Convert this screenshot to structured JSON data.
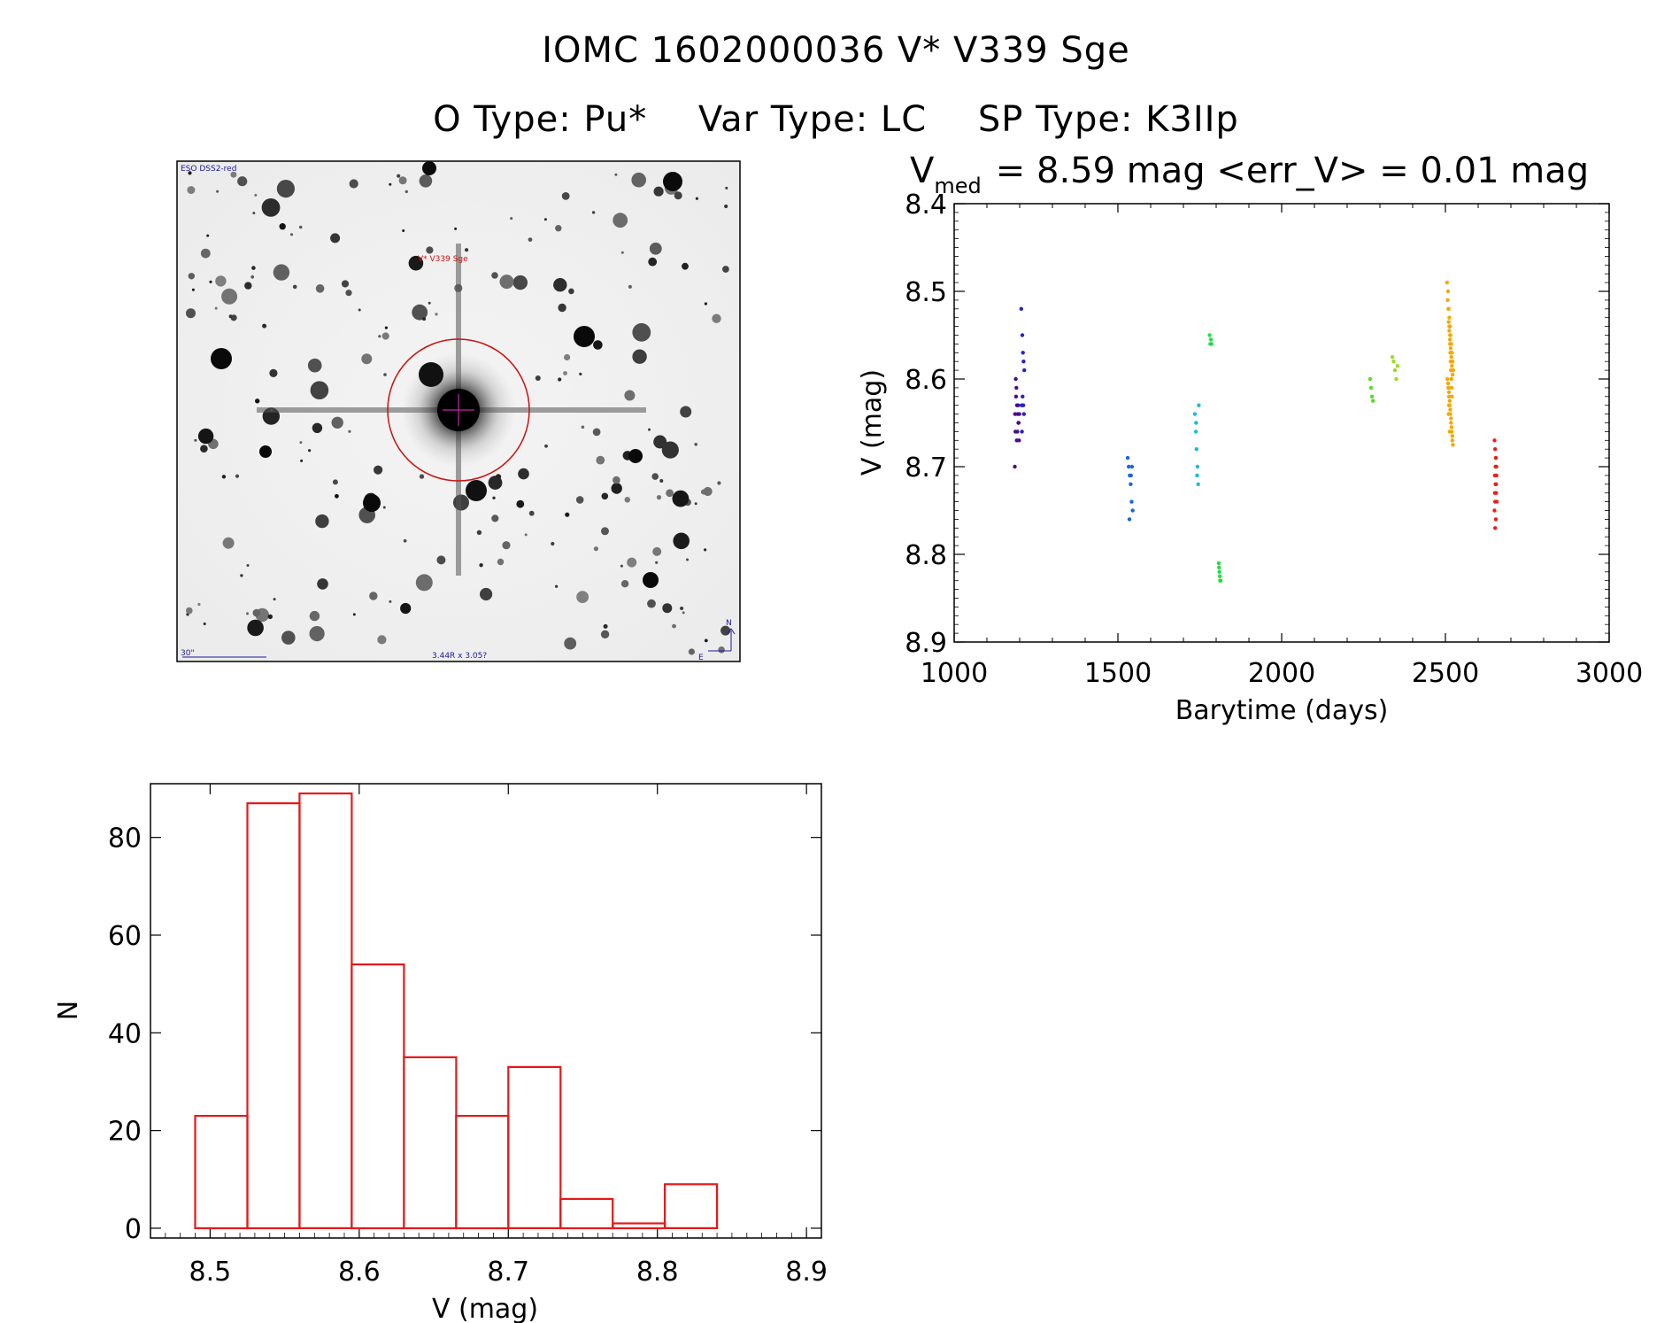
{
  "header": {
    "line1": "IOMC 1602000036    V* V339 Sge",
    "otype": "O Type: Pu*",
    "vartype": "Var Type: LC",
    "sptype": "SP Type: K3IIp"
  },
  "finder": {
    "survey_label": "ESO DSS2-red",
    "target_label": "V* V339 Sge",
    "scale_label": "30\"",
    "fov_label": "3.44R x 3.05?",
    "north_label": "N",
    "east_label": "E"
  },
  "colors": {
    "histogram": "#e81818",
    "target_marker": "#cc1111",
    "stamp_text": "#1a1a9a"
  },
  "chart_data": [
    {
      "type": "scatter",
      "title_main": "V",
      "title_sub": "med",
      "title_rest": "= 8.59 mag <err_V> = 0.01 mag",
      "xlabel": "Barytime (days)",
      "ylabel": "V (mag)",
      "xlim": [
        1000,
        3000
      ],
      "ylim": [
        8.9,
        8.4
      ],
      "y_inverted": true,
      "xticks": [
        1000,
        1500,
        2000,
        2500,
        3000
      ],
      "yticks": [
        8.4,
        8.5,
        8.6,
        8.7,
        8.8,
        8.9
      ],
      "series": [
        {
          "color": "#4b0a8c",
          "x": [
            1185,
            1188,
            1190,
            1192,
            1194,
            1196,
            1198,
            1186,
            1189,
            1193,
            1195,
            1197,
            1199,
            1187,
            1191
          ],
          "y": [
            8.7,
            8.6,
            8.61,
            8.63,
            8.64,
            8.65,
            8.67,
            8.64,
            8.62,
            8.66,
            8.63,
            8.65,
            8.64,
            8.66,
            8.67
          ]
        },
        {
          "color": "#2222cc",
          "x": [
            1205,
            1208,
            1210,
            1212,
            1214,
            1206,
            1209,
            1211,
            1213,
            1207
          ],
          "y": [
            8.52,
            8.55,
            8.57,
            8.58,
            8.59,
            8.63,
            8.62,
            8.63,
            8.64,
            8.66
          ]
        },
        {
          "color": "#1a66e0",
          "x": [
            1530,
            1533,
            1536,
            1539,
            1542,
            1545,
            1535,
            1540,
            1543
          ],
          "y": [
            8.69,
            8.7,
            8.71,
            8.72,
            8.74,
            8.75,
            8.76,
            8.71,
            8.7
          ]
        },
        {
          "color": "#18bcd8",
          "x": [
            1735,
            1738,
            1740,
            1743,
            1745,
            1747,
            1739,
            1742
          ],
          "y": [
            8.64,
            8.66,
            8.68,
            8.7,
            8.72,
            8.63,
            8.65,
            8.71
          ]
        },
        {
          "color": "#22dd44",
          "x": [
            1780,
            1782,
            1784,
            1786,
            1808,
            1810,
            1812,
            1814,
            1809,
            1811
          ],
          "y": [
            8.55,
            8.56,
            8.555,
            8.56,
            8.81,
            8.82,
            8.83,
            8.83,
            8.815,
            8.825
          ]
        },
        {
          "color": "#55dd22",
          "x": [
            2270,
            2273,
            2276,
            2279
          ],
          "y": [
            8.6,
            8.61,
            8.62,
            8.625
          ]
        },
        {
          "color": "#99dd22",
          "x": [
            2338,
            2342,
            2346,
            2350,
            2354
          ],
          "y": [
            8.575,
            8.58,
            8.59,
            8.6,
            8.585
          ]
        },
        {
          "color": "#f5a800",
          "x": [
            2505,
            2508,
            2510,
            2512,
            2514,
            2516,
            2518,
            2520,
            2522,
            2524,
            2506,
            2509,
            2511,
            2513,
            2515,
            2517,
            2519,
            2521,
            2523,
            2507,
            2510,
            2512,
            2514,
            2516,
            2518,
            2520,
            2522,
            2508,
            2511,
            2513,
            2515,
            2517,
            2519,
            2521,
            2509,
            2512,
            2514,
            2516,
            2518,
            2520,
            2510,
            2513,
            2515,
            2517,
            2519,
            2511,
            2514,
            2516,
            2518
          ],
          "y": [
            8.49,
            8.5,
            8.52,
            8.53,
            8.54,
            8.55,
            8.56,
            8.57,
            8.58,
            8.59,
            8.6,
            8.61,
            8.62,
            8.63,
            8.64,
            8.65,
            8.66,
            8.67,
            8.675,
            8.51,
            8.535,
            8.545,
            8.555,
            8.565,
            8.575,
            8.585,
            8.595,
            8.605,
            8.615,
            8.625,
            8.635,
            8.645,
            8.655,
            8.665,
            8.52,
            8.54,
            8.56,
            8.58,
            8.6,
            8.62,
            8.64,
            8.66,
            8.57,
            8.59,
            8.61,
            8.63,
            8.55,
            8.57,
            8.6
          ]
        },
        {
          "color": "#e82020",
          "x": [
            2650,
            2652,
            2654,
            2656,
            2651,
            2653,
            2655,
            2657,
            2650,
            2652,
            2654,
            2656,
            2651,
            2653,
            2655,
            2652,
            2654
          ],
          "y": [
            8.67,
            8.68,
            8.69,
            8.7,
            8.71,
            8.72,
            8.73,
            8.74,
            8.75,
            8.77,
            8.69,
            8.71,
            8.73,
            8.7,
            8.72,
            8.74,
            8.76
          ]
        }
      ]
    },
    {
      "type": "bar",
      "xlabel": "V (mag)",
      "ylabel": "N",
      "xlim": [
        8.46,
        8.91
      ],
      "ylim": [
        -2,
        91
      ],
      "xticks": [
        8.5,
        8.6,
        8.7,
        8.8,
        8.9
      ],
      "yticks": [
        0,
        20,
        40,
        60,
        80
      ],
      "bin_edges": [
        8.49,
        8.525,
        8.56,
        8.595,
        8.63,
        8.665,
        8.7,
        8.735,
        8.77,
        8.805,
        8.84
      ],
      "values": [
        23,
        87,
        89,
        54,
        35,
        23,
        33,
        6,
        1,
        9
      ]
    }
  ]
}
